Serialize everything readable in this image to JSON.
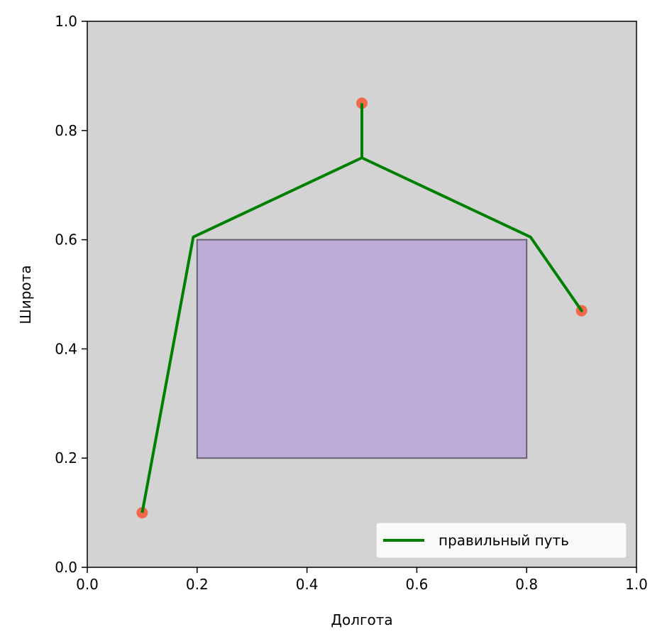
{
  "chart_data": {
    "type": "line",
    "title": "",
    "xlabel": "Долгота",
    "ylabel": "Широта",
    "xlim": [
      0,
      1
    ],
    "ylim": [
      0,
      1
    ],
    "xticks": [
      "0.0",
      "0.2",
      "0.4",
      "0.6",
      "0.8",
      "1.0"
    ],
    "yticks": [
      "0.0",
      "0.2",
      "0.4",
      "0.6",
      "0.8",
      "1.0"
    ],
    "grid": false,
    "legend_position": "lower-right",
    "background_color": "#d3d3d3",
    "obstacle": {
      "x0": 0.2,
      "y0": 0.2,
      "x1": 0.8,
      "y1": 0.6,
      "fill": "#bcaad8",
      "stroke": "#66606f"
    },
    "points": {
      "color": "#f4694c",
      "x": [
        0.1,
        0.5,
        0.9
      ],
      "y": [
        0.1,
        0.85,
        0.47
      ]
    },
    "series": [
      {
        "name": "правильный путь",
        "color": "#008000",
        "x": [
          0.1,
          0.193,
          0.5,
          0.807,
          0.9,
          0.807,
          0.5,
          0.5
        ],
        "y": [
          0.1,
          0.605,
          0.75,
          0.605,
          0.47,
          0.605,
          0.75,
          0.85
        ]
      }
    ]
  }
}
